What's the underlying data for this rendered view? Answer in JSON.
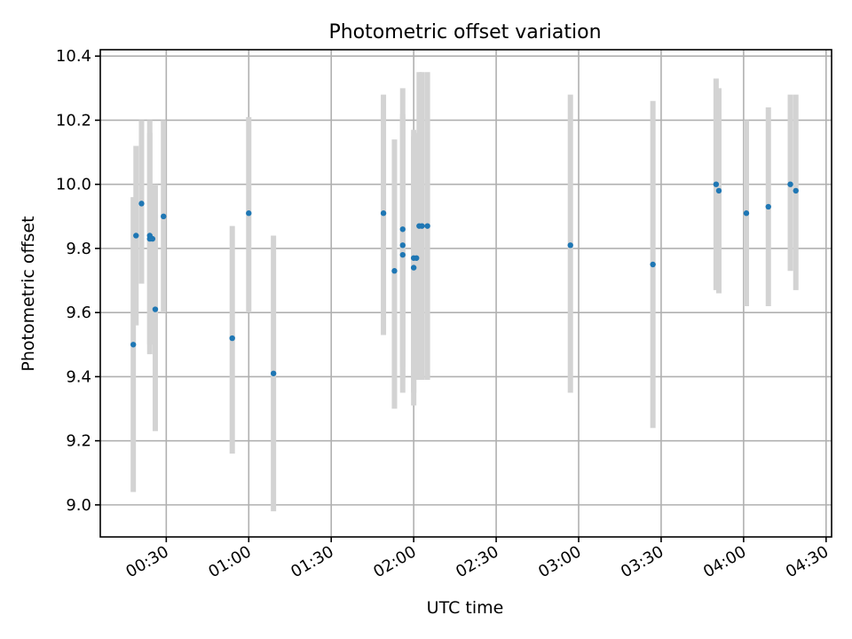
{
  "chart_data": {
    "type": "scatter",
    "title": "Photometric offset variation",
    "xlabel": "UTC time",
    "ylabel": "Photometric offset",
    "x_unit": "UTC time of day (HH:MM)",
    "xlim": [
      "00:06",
      "04:32"
    ],
    "ylim": [
      8.9,
      10.42
    ],
    "x_ticks": [
      "00:30",
      "01:00",
      "01:30",
      "02:00",
      "02:30",
      "03:00",
      "03:30",
      "04:00",
      "04:30"
    ],
    "y_ticks": [
      "9.0",
      "9.2",
      "9.4",
      "9.6",
      "9.8",
      "10.0",
      "10.2",
      "10.4"
    ],
    "grid": true,
    "marker_color": "#1f77b4",
    "errorbar_color": "#d3d3d3",
    "points": [
      {
        "x": "00:18",
        "y": 9.5,
        "ylow": 9.04,
        "yhigh": 9.96
      },
      {
        "x": "00:19",
        "y": 9.84,
        "ylow": 9.56,
        "yhigh": 10.12
      },
      {
        "x": "00:21",
        "y": 9.94,
        "ylow": 9.69,
        "yhigh": 10.2
      },
      {
        "x": "00:24",
        "y": 9.83,
        "ylow": 9.5,
        "yhigh": 10.2
      },
      {
        "x": "00:24",
        "y": 9.84,
        "ylow": 9.47,
        "yhigh": 10.16
      },
      {
        "x": "00:25",
        "y": 9.83,
        "ylow": 9.5,
        "yhigh": 10.0
      },
      {
        "x": "00:26",
        "y": 9.61,
        "ylow": 9.23,
        "yhigh": 10.0
      },
      {
        "x": "00:29",
        "y": 9.9,
        "ylow": 9.6,
        "yhigh": 10.2
      },
      {
        "x": "00:54",
        "y": 9.52,
        "ylow": 9.16,
        "yhigh": 9.87
      },
      {
        "x": "01:00",
        "y": 9.91,
        "ylow": 9.6,
        "yhigh": 10.21
      },
      {
        "x": "01:09",
        "y": 9.41,
        "ylow": 8.98,
        "yhigh": 9.84
      },
      {
        "x": "01:49",
        "y": 9.91,
        "ylow": 9.53,
        "yhigh": 10.28
      },
      {
        "x": "01:53",
        "y": 9.73,
        "ylow": 9.3,
        "yhigh": 10.14
      },
      {
        "x": "01:56",
        "y": 9.78,
        "ylow": 9.35,
        "yhigh": 10.21
      },
      {
        "x": "01:56",
        "y": 9.81,
        "ylow": 9.4,
        "yhigh": 10.22
      },
      {
        "x": "01:56",
        "y": 9.86,
        "ylow": 9.43,
        "yhigh": 10.3
      },
      {
        "x": "02:00",
        "y": 9.77,
        "ylow": 9.31,
        "yhigh": 10.17
      },
      {
        "x": "02:00",
        "y": 9.74,
        "ylow": 9.35,
        "yhigh": 10.15
      },
      {
        "x": "02:01",
        "y": 9.77,
        "ylow": 9.39,
        "yhigh": 10.16
      },
      {
        "x": "02:02",
        "y": 9.87,
        "ylow": 9.39,
        "yhigh": 10.35
      },
      {
        "x": "02:03",
        "y": 9.87,
        "ylow": 9.39,
        "yhigh": 10.35
      },
      {
        "x": "02:05",
        "y": 9.87,
        "ylow": 9.39,
        "yhigh": 10.35
      },
      {
        "x": "02:57",
        "y": 9.81,
        "ylow": 9.35,
        "yhigh": 10.28
      },
      {
        "x": "03:27",
        "y": 9.75,
        "ylow": 9.24,
        "yhigh": 10.26
      },
      {
        "x": "03:50",
        "y": 10.0,
        "ylow": 9.67,
        "yhigh": 10.33
      },
      {
        "x": "03:51",
        "y": 9.98,
        "ylow": 9.66,
        "yhigh": 10.3
      },
      {
        "x": "04:01",
        "y": 9.91,
        "ylow": 9.62,
        "yhigh": 10.2
      },
      {
        "x": "04:09",
        "y": 9.93,
        "ylow": 9.62,
        "yhigh": 10.24
      },
      {
        "x": "04:17",
        "y": 10.0,
        "ylow": 9.73,
        "yhigh": 10.28
      },
      {
        "x": "04:19",
        "y": 9.98,
        "ylow": 9.67,
        "yhigh": 10.28
      }
    ]
  }
}
